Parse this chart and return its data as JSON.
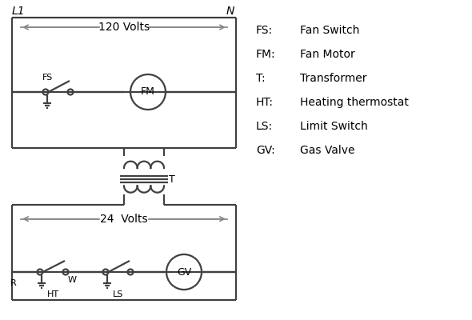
{
  "background_color": "#ffffff",
  "line_color": "#404040",
  "arrow_color": "#888888",
  "text_color": "#000000",
  "legend_items": [
    [
      "FS:",
      "Fan Switch"
    ],
    [
      "FM:",
      "Fan Motor"
    ],
    [
      "T:",
      "Transformer"
    ],
    [
      "HT:",
      "Heating thermostat"
    ],
    [
      "LS:",
      "Limit Switch"
    ],
    [
      "GV:",
      "Gas Valve"
    ]
  ],
  "L1_label": "L1",
  "N_label": "N",
  "volts120_label": "120 Volts",
  "volts24_label": "24  Volts",
  "T_label": "T",
  "R_label": "R",
  "W_label": "W",
  "HT_label": "HT",
  "LS_label": "LS",
  "FS_label": "FS",
  "FM_label": "FM",
  "GV_label": "GV"
}
